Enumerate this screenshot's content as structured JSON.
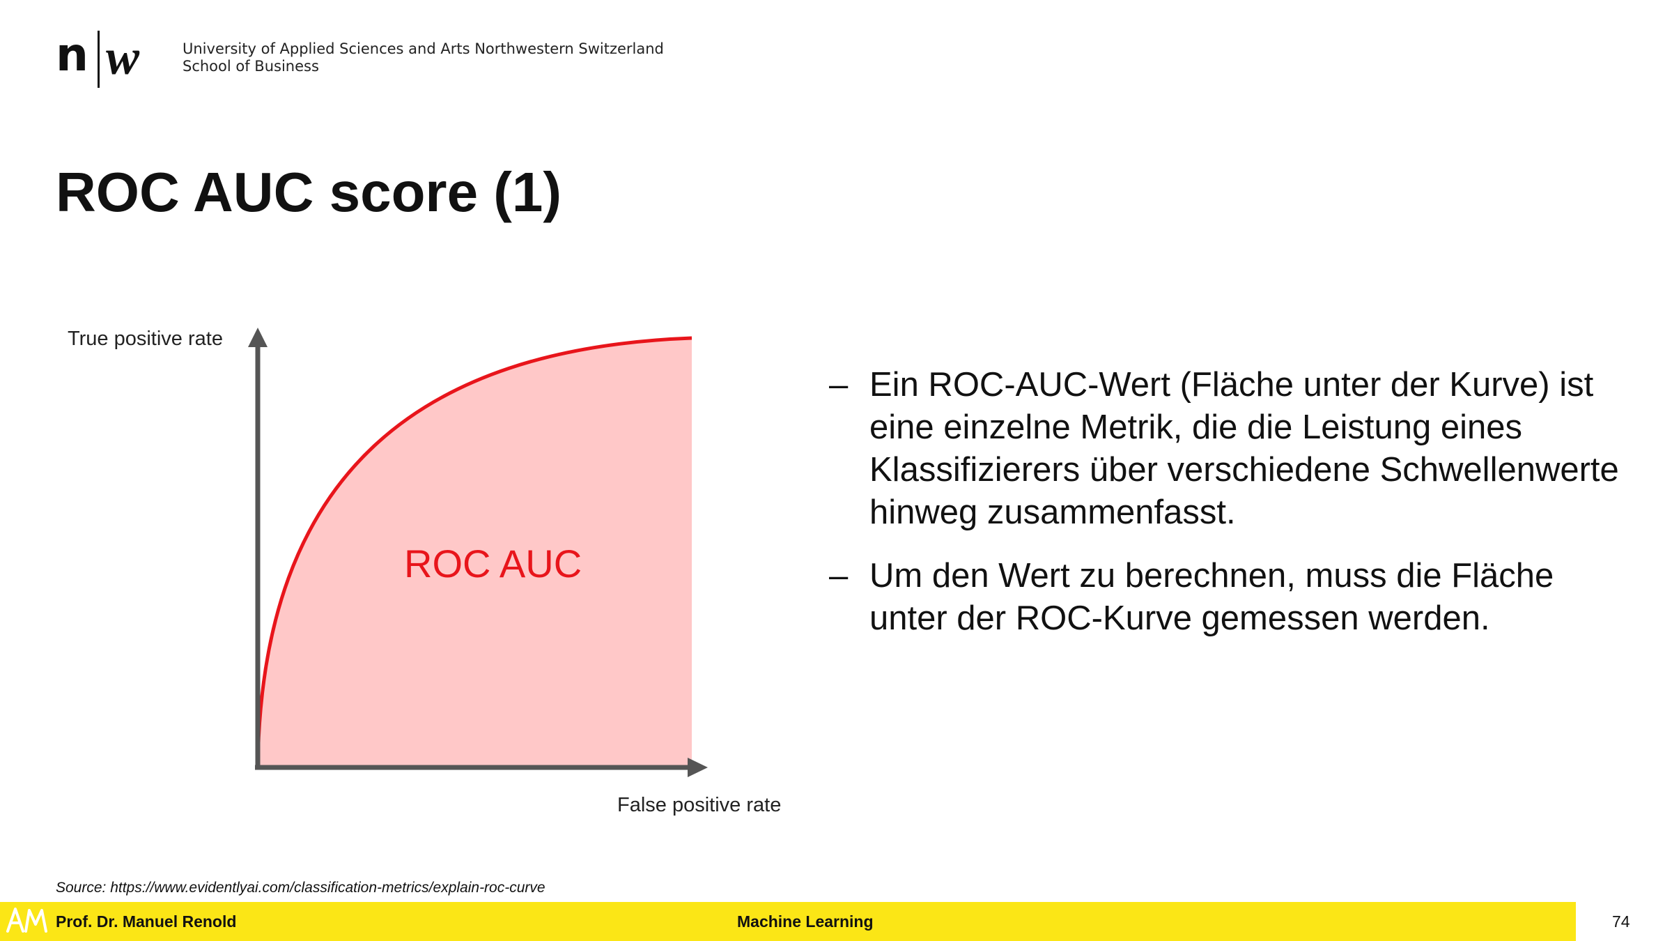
{
  "header": {
    "logo_n": "n",
    "logo_w": "w",
    "institution_line1": "University of Applied Sciences and Arts Northwestern Switzerland",
    "institution_line2": "School of Business"
  },
  "slide": {
    "title": "ROC AUC score (1)",
    "bullets": [
      {
        "dash": "–",
        "text": "Ein ROC-AUC-Wert (Fläche unter der Kurve) ist eine einzelne Metrik, die die Leistung eines Klassifizierers über verschiedene Schwellenwerte hinweg zusammenfasst."
      },
      {
        "dash": "–",
        "text": "Um den Wert zu berechnen, muss die Fläche unter der ROC-Kurve gemessen werden."
      }
    ],
    "source": "Source: https://www.evidentlyai.com/classification-metrics/explain-roc-curve"
  },
  "figure": {
    "y_label": "True positive rate",
    "x_label": "False positive rate",
    "area_label": "ROC AUC",
    "curve_color": "#e8151b",
    "area_color": "#ffc8c8",
    "axis_color": "#555555"
  },
  "footer": {
    "icon": "am-logo-icon",
    "author": "Prof. Dr. Manuel Renold",
    "course": "Machine Learning",
    "page_number": "74",
    "bar_color": "#fbe616"
  }
}
